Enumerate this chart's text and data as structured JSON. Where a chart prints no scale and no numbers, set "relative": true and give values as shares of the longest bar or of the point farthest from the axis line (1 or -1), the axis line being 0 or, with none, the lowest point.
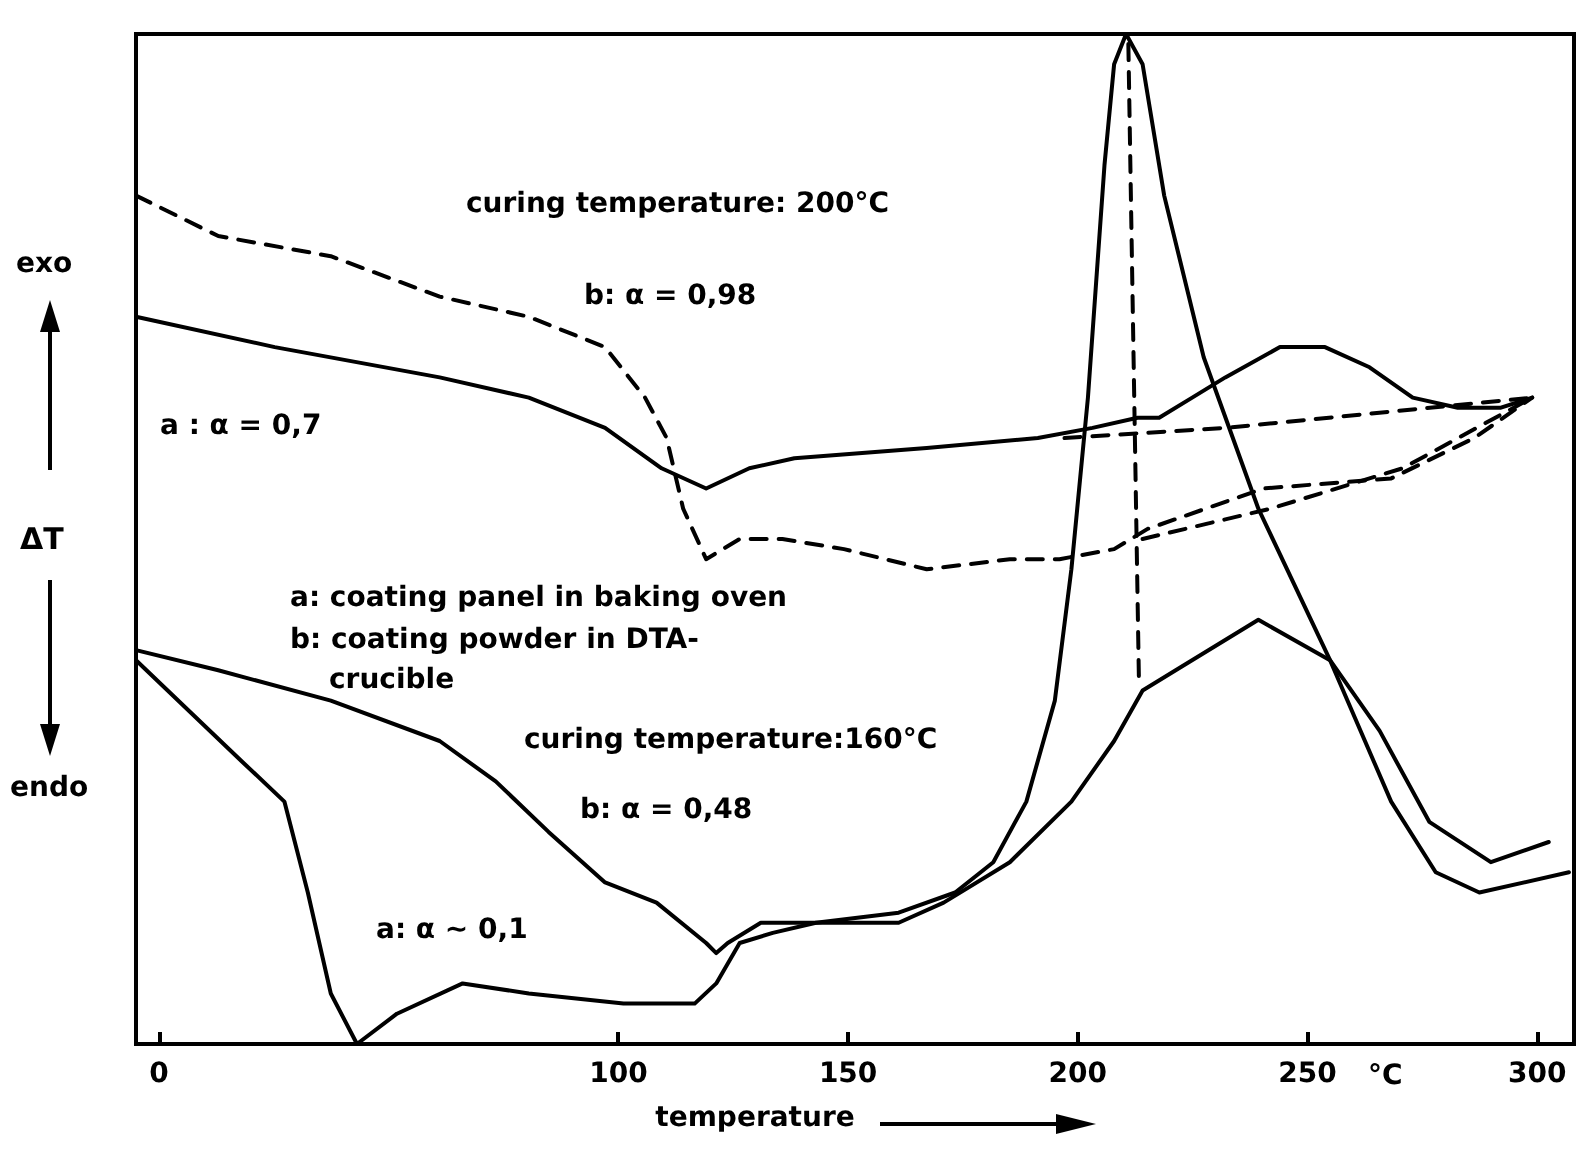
{
  "chart_data": {
    "type": "line",
    "relative": true,
    "xlabel": "temperature",
    "ylabel": "ΔT",
    "xlim": [
      -5,
      308
    ],
    "xticks": [
      0,
      100,
      150,
      200,
      250,
      300
    ],
    "tick_labels": "x",
    "marker": "none",
    "annotations": [
      "curing temperature: 200°C",
      "b: α = 0,98",
      "a : α = 0,7",
      "a: coating panel in baking oven",
      "b: coating powder in DTA-\n    crucible",
      "curing temperature:160°C",
      "b: α = 0,48",
      "a: α ~ 0,1",
      "exo",
      "endo",
      "°C"
    ],
    "series": [
      {
        "color": "#000000",
        "line_style": "solid",
        "x": [
          -5,
          25.2,
          61.1,
          80.5,
          97.1,
          109.4,
          119.1,
          128.5,
          138.3,
          167.1,
          191.3,
          203.2,
          213.0,
          217.7,
          224.9,
          232.1,
          244.0,
          253.8,
          263.5,
          272.9,
          282.7,
          292.1,
          298.9
        ],
        "values": [
          0.72,
          0.69,
          0.66,
          0.64,
          0.61,
          0.57,
          0.55,
          0.57,
          0.58,
          0.59,
          0.6,
          0.61,
          0.62,
          0.62,
          0.64,
          0.66,
          0.69,
          0.69,
          0.67,
          0.64,
          0.63,
          0.63,
          0.64
        ]
      },
      {
        "color": "#000000",
        "line_style": "dashed",
        "x": [
          -5,
          12.9,
          37.4,
          61.1,
          80.5,
          97.1,
          105.8,
          110.5,
          114.1,
          119.1,
          126.4,
          135.7,
          149.1,
          167.1,
          185.2,
          196.0,
          207.9,
          215.2,
          240.4,
          268.2,
          286.3,
          298.9
        ],
        "values": [
          0.84,
          0.8,
          0.78,
          0.74,
          0.72,
          0.69,
          0.64,
          0.6,
          0.53,
          0.48,
          0.5,
          0.5,
          0.49,
          0.47,
          0.48,
          0.48,
          0.49,
          0.51,
          0.55,
          0.56,
          0.6,
          0.64
        ]
      },
      {
        "color": "#000000",
        "line_style": "dashed",
        "x": [
          214.1,
          241.9,
          270.7,
          298.9
        ],
        "values": [
          0.5,
          0.53,
          0.57,
          0.64
        ]
      },
      {
        "color": "#000000",
        "line_style": "dashed",
        "x": [
          197.1,
          232.1,
          298.9
        ],
        "values": [
          0.6,
          0.61,
          0.64
        ]
      },
      {
        "color": "#000000",
        "line_style": "solid",
        "x": [
          -5,
          12.9,
          37.4,
          61.1,
          73.3,
          84.8,
          97.1,
          108.3,
          119.1,
          121.3,
          123.8,
          131.0,
          143.0,
          161.0,
          170.8,
          185.2,
          198.6,
          207.9,
          214.1,
          221.3,
          239.3,
          254.9,
          265.7,
          276.5,
          289.9,
          302.5
        ],
        "values": [
          0.39,
          0.37,
          0.34,
          0.3,
          0.26,
          0.21,
          0.16,
          0.14,
          0.1,
          0.09,
          0.1,
          0.12,
          0.12,
          0.12,
          0.14,
          0.18,
          0.24,
          0.3,
          0.35,
          0.37,
          0.42,
          0.38,
          0.31,
          0.22,
          0.18,
          0.2
        ]
      },
      {
        "color": "#000000",
        "line_style": "solid",
        "x": [
          -5,
          18.0,
          27.3,
          32.4,
          37.4,
          43.1,
          51.8,
          66.1,
          80.5,
          101.1,
          116.6,
          121.3,
          126.4,
          133.6,
          143.0,
          161.0,
          173.3,
          181.6,
          188.8,
          195.0,
          198.6,
          202.2,
          205.8,
          207.9,
          210.5,
          214.1,
          218.8,
          227.4,
          239.3,
          254.9,
          268.2,
          277.9,
          287.4,
          306.9
        ],
        "values": [
          0.38,
          0.28,
          0.24,
          0.15,
          0.05,
          0.0,
          0.03,
          0.06,
          0.05,
          0.04,
          0.04,
          0.06,
          0.1,
          0.11,
          0.12,
          0.13,
          0.15,
          0.18,
          0.24,
          0.34,
          0.47,
          0.64,
          0.87,
          0.97,
          1.0,
          0.97,
          0.84,
          0.68,
          0.53,
          0.38,
          0.24,
          0.17,
          0.15,
          0.17
        ]
      },
      {
        "color": "#000000",
        "line_style": "dashed",
        "x": [
          211.0,
          213.3
        ],
        "values": [
          0.99,
          0.36
        ]
      }
    ]
  }
}
